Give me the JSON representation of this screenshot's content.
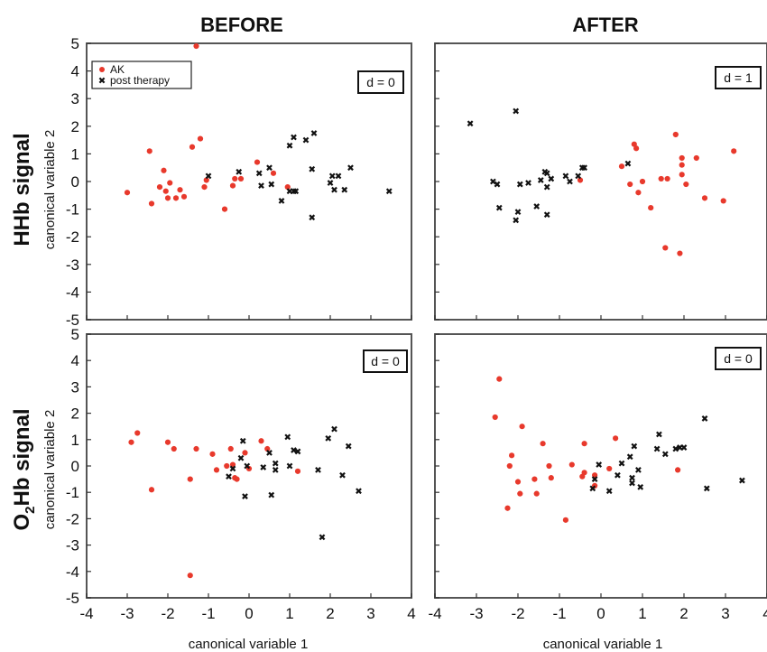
{
  "column_titles": [
    "BEFORE",
    "AFTER"
  ],
  "row_titles": {
    "hhb": "HHb signal",
    "o2hb_prefix": "O",
    "o2hb_sub": "2",
    "o2hb_suffix": "Hb signal"
  },
  "ylabel": "canonical variable 2",
  "xlabel": "canonical variable 1",
  "legend": {
    "ak": "AK",
    "post": "post therapy"
  },
  "colors": {
    "ak": "#e8392c",
    "post": "#111111",
    "frame": "#555555"
  },
  "chart_data": [
    {
      "type": "scatter",
      "row": "HHb signal",
      "column": "BEFORE",
      "annotation": "d = 0",
      "xlim": [
        -4,
        4
      ],
      "ylim": [
        -5,
        5
      ],
      "show_xticks": false,
      "show_yticks": true,
      "legend": true,
      "series": [
        {
          "name": "AK",
          "points": [
            [
              -3.0,
              -0.4
            ],
            [
              -2.45,
              1.1
            ],
            [
              -2.4,
              -0.8
            ],
            [
              -2.2,
              -0.2
            ],
            [
              -2.1,
              0.4
            ],
            [
              -2.05,
              -0.35
            ],
            [
              -2.0,
              -0.6
            ],
            [
              -1.95,
              -0.05
            ],
            [
              -1.8,
              -0.6
            ],
            [
              -1.7,
              -0.3
            ],
            [
              -1.6,
              -0.55
            ],
            [
              -1.4,
              1.25
            ],
            [
              -1.3,
              4.9
            ],
            [
              -1.2,
              1.55
            ],
            [
              -1.1,
              -0.2
            ],
            [
              -1.05,
              0.05
            ],
            [
              -0.6,
              -1.0
            ],
            [
              -0.4,
              -0.15
            ],
            [
              -0.35,
              0.1
            ],
            [
              -0.2,
              0.1
            ],
            [
              0.2,
              0.7
            ],
            [
              0.6,
              0.3
            ],
            [
              0.95,
              -0.2
            ]
          ]
        },
        {
          "name": "post therapy",
          "points": [
            [
              -1.0,
              0.2
            ],
            [
              -0.25,
              0.35
            ],
            [
              0.25,
              0.3
            ],
            [
              0.3,
              -0.15
            ],
            [
              0.5,
              0.5
            ],
            [
              0.55,
              -0.1
            ],
            [
              0.8,
              -0.7
            ],
            [
              1.0,
              1.3
            ],
            [
              1.0,
              -0.35
            ],
            [
              1.1,
              1.6
            ],
            [
              1.1,
              -0.35
            ],
            [
              1.15,
              -0.35
            ],
            [
              1.4,
              1.5
            ],
            [
              1.55,
              0.45
            ],
            [
              1.55,
              -1.3
            ],
            [
              1.6,
              1.75
            ],
            [
              2.0,
              -0.05
            ],
            [
              2.05,
              0.2
            ],
            [
              2.1,
              -0.3
            ],
            [
              2.2,
              0.2
            ],
            [
              2.35,
              -0.3
            ],
            [
              2.5,
              0.5
            ],
            [
              3.45,
              -0.35
            ]
          ]
        }
      ]
    },
    {
      "type": "scatter",
      "row": "HHb signal",
      "column": "AFTER",
      "annotation": "d = 1",
      "xlim": [
        -4,
        4
      ],
      "ylim": [
        -5,
        5
      ],
      "show_xticks": false,
      "show_yticks": false,
      "legend": false,
      "series": [
        {
          "name": "AK",
          "points": [
            [
              -0.5,
              0.05
            ],
            [
              0.5,
              0.55
            ],
            [
              0.7,
              -0.1
            ],
            [
              0.8,
              1.35
            ],
            [
              0.85,
              1.2
            ],
            [
              0.9,
              -0.4
            ],
            [
              1.0,
              0.0
            ],
            [
              1.2,
              -0.95
            ],
            [
              1.45,
              0.1
            ],
            [
              1.55,
              -2.4
            ],
            [
              1.6,
              0.1
            ],
            [
              1.8,
              1.7
            ],
            [
              1.9,
              -2.6
            ],
            [
              1.95,
              0.6
            ],
            [
              1.95,
              0.25
            ],
            [
              1.95,
              0.85
            ],
            [
              2.05,
              -0.1
            ],
            [
              2.3,
              0.85
            ],
            [
              2.5,
              -0.6
            ],
            [
              2.95,
              -0.7
            ],
            [
              3.2,
              1.1
            ]
          ]
        },
        {
          "name": "post therapy",
          "points": [
            [
              -3.15,
              2.1
            ],
            [
              -2.6,
              0.0
            ],
            [
              -2.5,
              -0.1
            ],
            [
              -2.45,
              -0.95
            ],
            [
              -2.05,
              2.55
            ],
            [
              -2.05,
              -1.4
            ],
            [
              -2.0,
              -1.1
            ],
            [
              -1.95,
              -0.1
            ],
            [
              -1.75,
              -0.05
            ],
            [
              -1.55,
              -0.9
            ],
            [
              -1.45,
              0.05
            ],
            [
              -1.35,
              0.35
            ],
            [
              -1.3,
              0.3
            ],
            [
              -1.3,
              -0.2
            ],
            [
              -1.3,
              -1.2
            ],
            [
              -1.2,
              0.1
            ],
            [
              -0.85,
              0.2
            ],
            [
              -0.75,
              0.0
            ],
            [
              -0.55,
              0.2
            ],
            [
              -0.45,
              0.5
            ],
            [
              -0.4,
              0.5
            ],
            [
              0.65,
              0.65
            ]
          ]
        }
      ]
    },
    {
      "type": "scatter",
      "row": "O2Hb signal",
      "column": "BEFORE",
      "annotation": "d = 0",
      "xlim": [
        -4,
        4
      ],
      "ylim": [
        -5,
        5
      ],
      "show_xticks": true,
      "show_yticks": true,
      "legend": false,
      "series": [
        {
          "name": "AK",
          "points": [
            [
              -2.9,
              0.9
            ],
            [
              -2.75,
              1.25
            ],
            [
              -2.4,
              -0.9
            ],
            [
              -2.0,
              0.9
            ],
            [
              -1.85,
              0.65
            ],
            [
              -1.45,
              -0.5
            ],
            [
              -1.3,
              0.65
            ],
            [
              -1.45,
              -4.15
            ],
            [
              -0.9,
              0.45
            ],
            [
              -0.8,
              -0.15
            ],
            [
              -0.55,
              0.0
            ],
            [
              -0.45,
              0.65
            ],
            [
              -0.4,
              0.05
            ],
            [
              -0.35,
              -0.45
            ],
            [
              -0.3,
              -0.5
            ],
            [
              -0.1,
              0.5
            ],
            [
              0.0,
              -0.1
            ],
            [
              0.3,
              0.95
            ],
            [
              0.45,
              0.65
            ],
            [
              1.2,
              -0.2
            ]
          ]
        },
        {
          "name": "post therapy",
          "points": [
            [
              -0.5,
              -0.4
            ],
            [
              -0.4,
              -0.1
            ],
            [
              -0.2,
              0.3
            ],
            [
              -0.15,
              0.95
            ],
            [
              -0.1,
              -1.15
            ],
            [
              -0.05,
              0.0
            ],
            [
              0.35,
              -0.05
            ],
            [
              0.5,
              0.5
            ],
            [
              0.55,
              -1.1
            ],
            [
              0.65,
              0.1
            ],
            [
              0.65,
              -0.15
            ],
            [
              0.95,
              1.1
            ],
            [
              1.0,
              0.0
            ],
            [
              1.1,
              0.6
            ],
            [
              1.2,
              0.55
            ],
            [
              1.7,
              -0.15
            ],
            [
              1.8,
              -2.7
            ],
            [
              1.95,
              1.05
            ],
            [
              2.1,
              1.4
            ],
            [
              2.3,
              -0.35
            ],
            [
              2.45,
              0.75
            ],
            [
              2.7,
              -0.95
            ]
          ]
        }
      ]
    },
    {
      "type": "scatter",
      "row": "O2Hb signal",
      "column": "AFTER",
      "annotation": "d = 0",
      "xlim": [
        -4,
        4
      ],
      "ylim": [
        -5,
        5
      ],
      "show_xticks": true,
      "show_yticks": false,
      "legend": false,
      "series": [
        {
          "name": "AK",
          "points": [
            [
              -2.55,
              1.85
            ],
            [
              -2.45,
              3.3
            ],
            [
              -2.25,
              -1.6
            ],
            [
              -2.2,
              0.0
            ],
            [
              -2.15,
              0.4
            ],
            [
              -2.0,
              -0.6
            ],
            [
              -1.95,
              -1.05
            ],
            [
              -1.9,
              1.5
            ],
            [
              -1.6,
              -0.5
            ],
            [
              -1.55,
              -1.05
            ],
            [
              -1.4,
              0.85
            ],
            [
              -1.25,
              0.0
            ],
            [
              -1.2,
              -0.45
            ],
            [
              -0.85,
              -2.05
            ],
            [
              -0.7,
              0.05
            ],
            [
              -0.45,
              -0.4
            ],
            [
              -0.4,
              -0.25
            ],
            [
              -0.4,
              0.85
            ],
            [
              -0.15,
              -0.35
            ],
            [
              -0.15,
              -0.75
            ],
            [
              0.2,
              -0.1
            ],
            [
              0.35,
              1.05
            ],
            [
              1.85,
              -0.15
            ]
          ]
        },
        {
          "name": "post therapy",
          "points": [
            [
              -0.2,
              -0.85
            ],
            [
              -0.15,
              -0.5
            ],
            [
              -0.05,
              0.05
            ],
            [
              0.2,
              -0.95
            ],
            [
              0.4,
              -0.35
            ],
            [
              0.5,
              0.1
            ],
            [
              0.7,
              0.35
            ],
            [
              0.75,
              -0.45
            ],
            [
              0.75,
              -0.65
            ],
            [
              0.8,
              0.75
            ],
            [
              0.9,
              -0.15
            ],
            [
              0.95,
              -0.8
            ],
            [
              1.35,
              0.65
            ],
            [
              1.4,
              1.2
            ],
            [
              1.55,
              0.45
            ],
            [
              1.8,
              0.65
            ],
            [
              1.9,
              0.7
            ],
            [
              2.0,
              0.7
            ],
            [
              2.5,
              1.8
            ],
            [
              2.55,
              -0.85
            ],
            [
              3.4,
              -0.55
            ]
          ]
        }
      ]
    }
  ]
}
